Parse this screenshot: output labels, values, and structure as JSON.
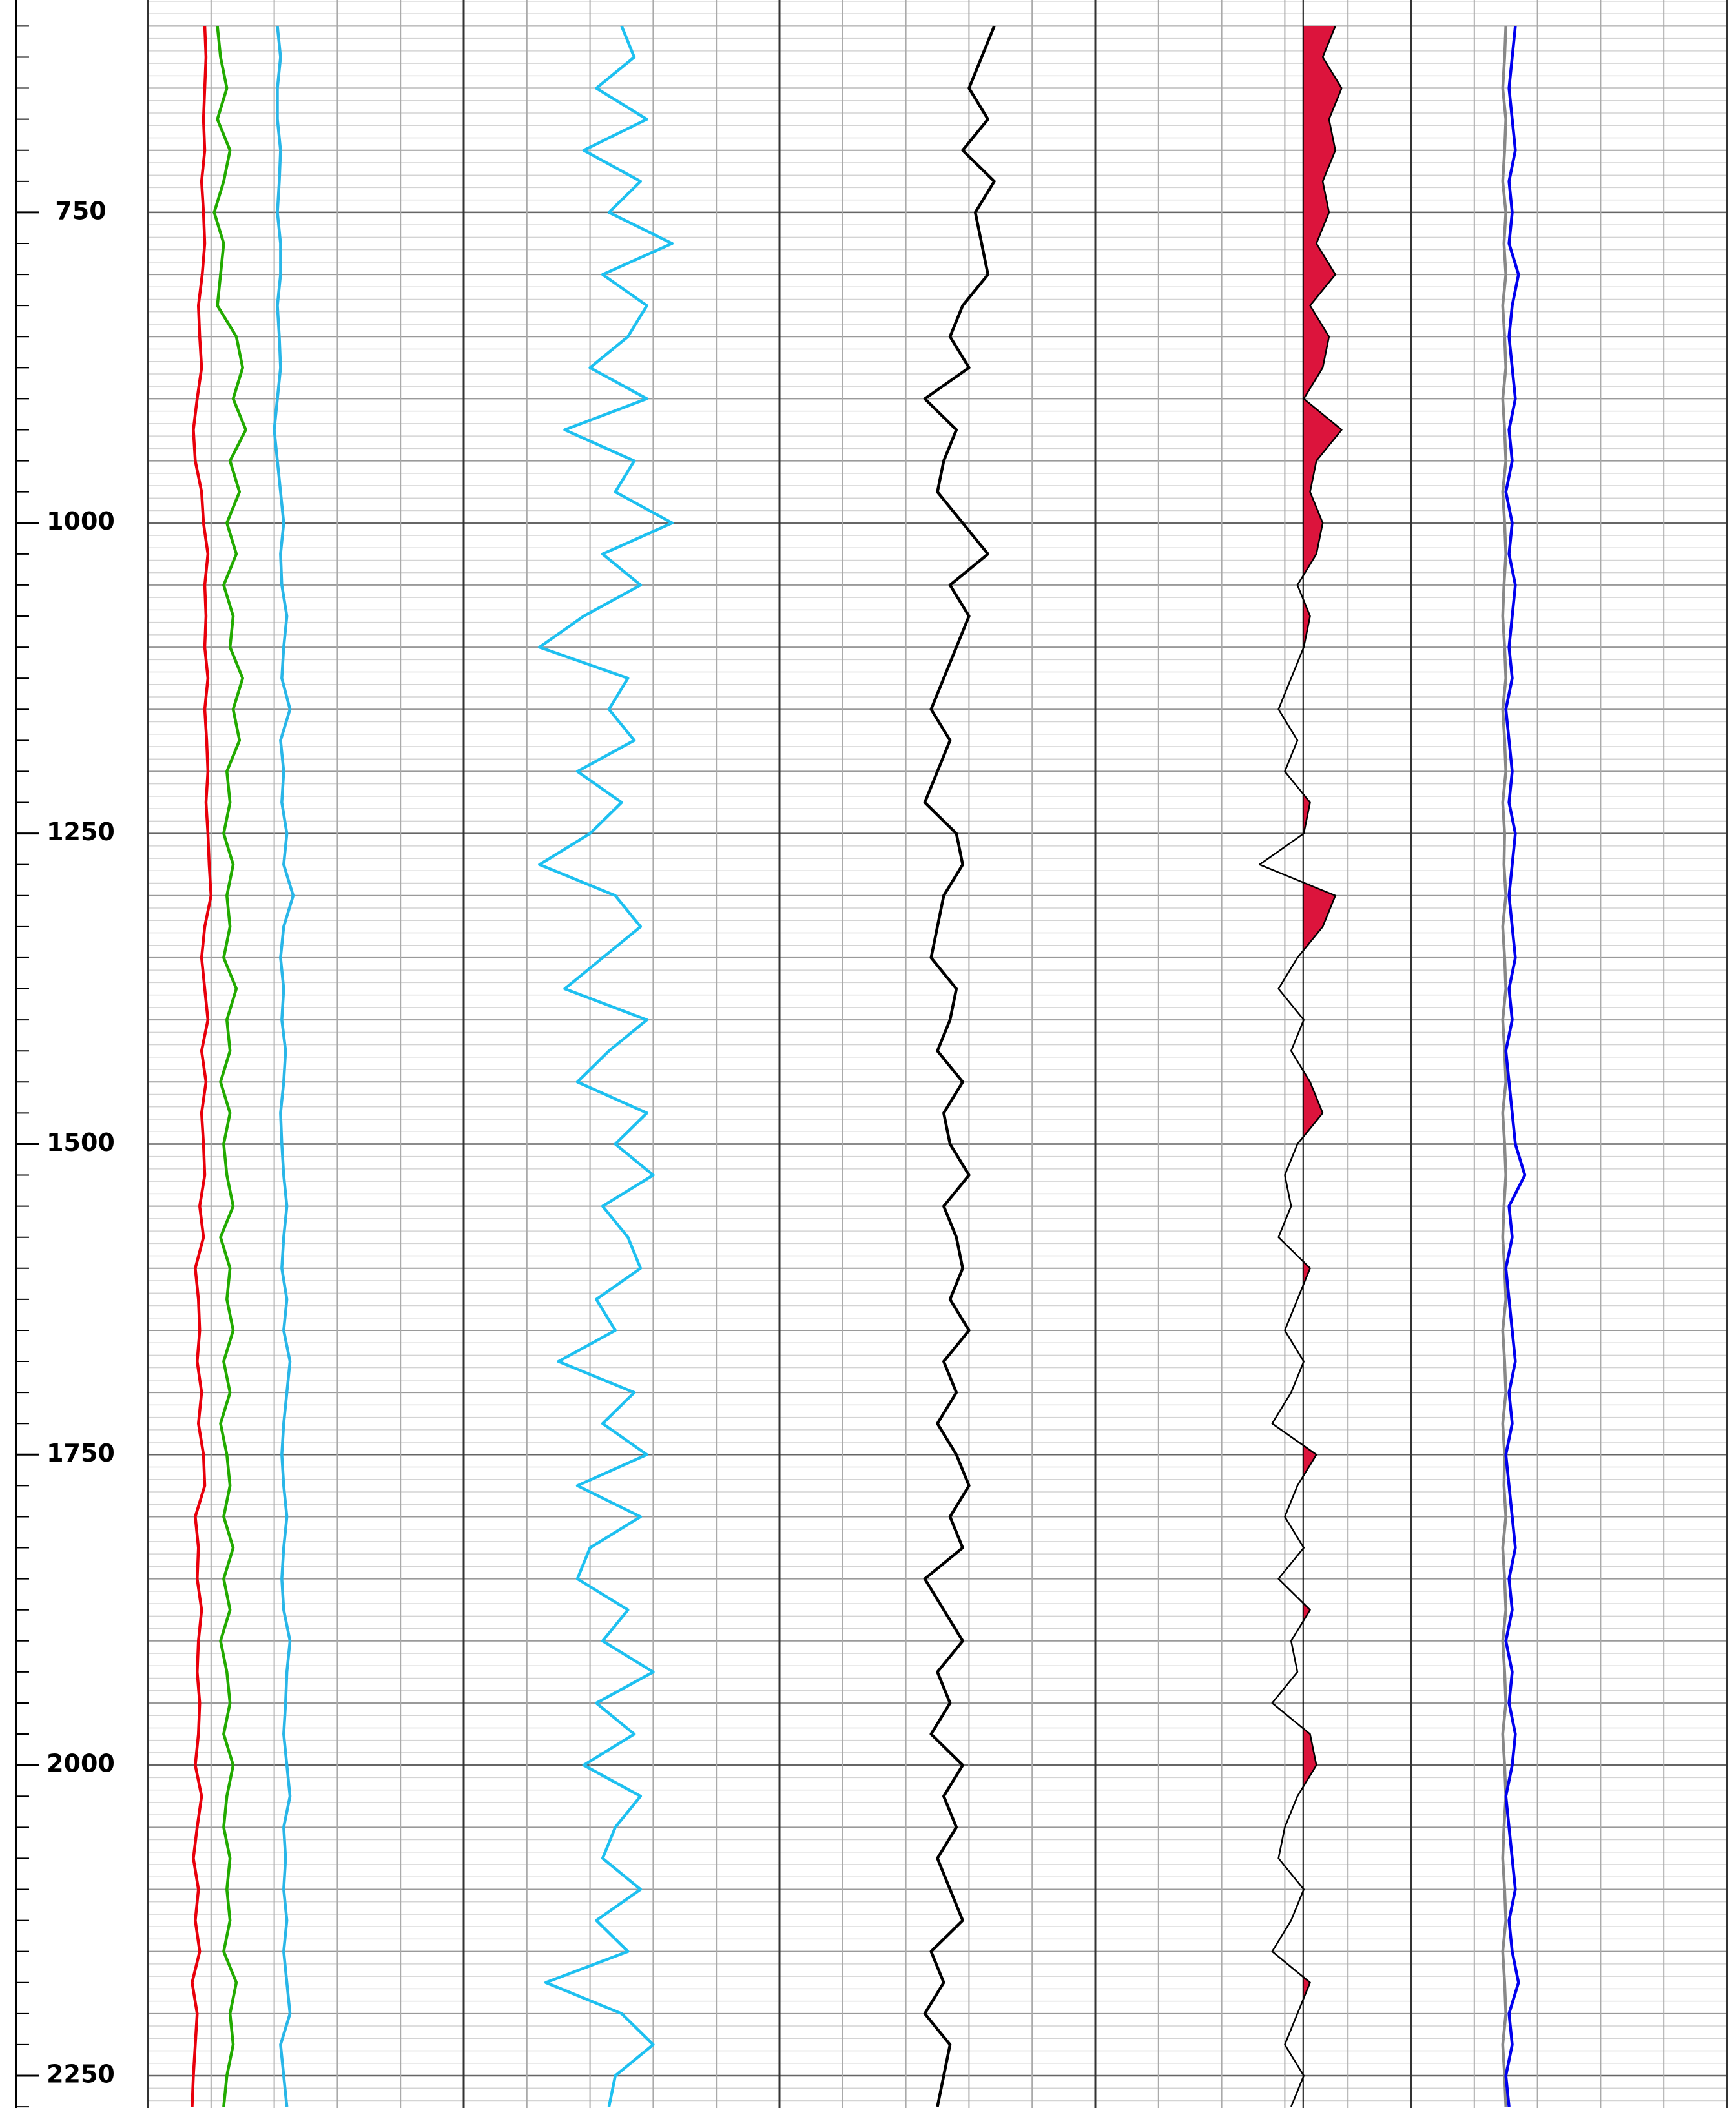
{
  "chart_data": {
    "type": "well-log",
    "ylim": [
      579,
      2276
    ],
    "yticks": [
      750,
      1000,
      1250,
      1500,
      1750,
      2000,
      2250
    ],
    "ygrid_minor": 10,
    "ygrid_mid": 50,
    "depth": [
      600,
      625,
      650,
      675,
      700,
      725,
      750,
      775,
      800,
      825,
      850,
      875,
      900,
      925,
      950,
      975,
      1000,
      1025,
      1050,
      1075,
      1100,
      1125,
      1150,
      1175,
      1200,
      1225,
      1250,
      1275,
      1300,
      1325,
      1350,
      1375,
      1400,
      1425,
      1450,
      1475,
      1500,
      1525,
      1550,
      1575,
      1600,
      1625,
      1650,
      1675,
      1700,
      1725,
      1750,
      1775,
      1800,
      1825,
      1850,
      1875,
      1900,
      1925,
      1950,
      1975,
      2000,
      2025,
      2050,
      2075,
      2100,
      2125,
      2150,
      2175,
      2200,
      2225,
      2250,
      2275
    ],
    "tracks": [
      {
        "xlim": [
          0,
          5
        ],
        "xticks": [
          0,
          1,
          2,
          3,
          4,
          5
        ],
        "series": [
          {
            "color": "#e8000b",
            "values": [
              0.9,
              0.92,
              0.9,
              0.88,
              0.9,
              0.85,
              0.88,
              0.9,
              0.86,
              0.8,
              0.82,
              0.85,
              0.78,
              0.72,
              0.75,
              0.85,
              0.88,
              0.95,
              0.9,
              0.92,
              0.9,
              0.95,
              0.9,
              0.93,
              0.95,
              0.92,
              0.95,
              0.97,
              1.0,
              0.9,
              0.85,
              0.9,
              0.95,
              0.85,
              0.92,
              0.85,
              0.88,
              0.9,
              0.82,
              0.88,
              0.75,
              0.8,
              0.82,
              0.78,
              0.85,
              0.8,
              0.88,
              0.9,
              0.75,
              0.8,
              0.78,
              0.85,
              0.8,
              0.78,
              0.82,
              0.8,
              0.75,
              0.85,
              0.78,
              0.72,
              0.8,
              0.75,
              0.82,
              0.7,
              0.78,
              0.75,
              0.72,
              0.7
            ]
          },
          {
            "color": "#22aa00",
            "values": [
              1.1,
              1.15,
              1.25,
              1.1,
              1.3,
              1.2,
              1.05,
              1.2,
              1.15,
              1.1,
              1.4,
              1.5,
              1.35,
              1.55,
              1.3,
              1.45,
              1.25,
              1.4,
              1.2,
              1.35,
              1.3,
              1.5,
              1.35,
              1.45,
              1.25,
              1.3,
              1.2,
              1.35,
              1.25,
              1.3,
              1.2,
              1.4,
              1.25,
              1.3,
              1.15,
              1.3,
              1.2,
              1.25,
              1.35,
              1.15,
              1.3,
              1.25,
              1.35,
              1.2,
              1.3,
              1.15,
              1.25,
              1.3,
              1.2,
              1.35,
              1.2,
              1.3,
              1.15,
              1.25,
              1.3,
              1.2,
              1.35,
              1.25,
              1.2,
              1.3,
              1.25,
              1.3,
              1.2,
              1.4,
              1.3,
              1.35,
              1.25,
              1.2
            ]
          },
          {
            "color": "#29b6e8",
            "values": [
              2.05,
              2.1,
              2.05,
              2.05,
              2.1,
              2.08,
              2.05,
              2.1,
              2.1,
              2.05,
              2.08,
              2.1,
              2.05,
              2.0,
              2.05,
              2.1,
              2.15,
              2.1,
              2.12,
              2.2,
              2.15,
              2.12,
              2.25,
              2.1,
              2.15,
              2.12,
              2.2,
              2.15,
              2.3,
              2.15,
              2.1,
              2.15,
              2.12,
              2.18,
              2.15,
              2.1,
              2.12,
              2.15,
              2.2,
              2.15,
              2.12,
              2.2,
              2.15,
              2.25,
              2.2,
              2.15,
              2.12,
              2.15,
              2.2,
              2.15,
              2.12,
              2.15,
              2.25,
              2.2,
              2.18,
              2.15,
              2.2,
              2.25,
              2.15,
              2.18,
              2.15,
              2.2,
              2.15,
              2.2,
              2.25,
              2.1,
              2.15,
              2.2
            ]
          }
        ]
      },
      {
        "xlim": [
          0,
          5
        ],
        "xticks": [
          0,
          1,
          2,
          3,
          4,
          5
        ],
        "series": [
          {
            "color": "#1ec0f0",
            "values": [
              2.5,
              2.7,
              2.1,
              2.9,
              1.9,
              2.8,
              2.3,
              3.3,
              2.2,
              2.9,
              2.6,
              2.0,
              2.9,
              1.6,
              2.7,
              2.4,
              3.3,
              2.2,
              2.8,
              1.9,
              1.2,
              2.6,
              2.3,
              2.7,
              1.8,
              2.5,
              2.0,
              1.2,
              2.4,
              2.8,
              2.2,
              1.6,
              2.9,
              2.3,
              1.8,
              2.9,
              2.4,
              3.0,
              2.2,
              2.6,
              2.8,
              2.1,
              2.4,
              1.5,
              2.7,
              2.2,
              2.9,
              1.8,
              2.8,
              2.0,
              1.8,
              2.6,
              2.2,
              3.0,
              2.1,
              2.7,
              1.9,
              2.8,
              2.4,
              2.2,
              2.8,
              2.1,
              2.6,
              1.3,
              2.5,
              3.0,
              2.4,
              2.3
            ]
          }
        ]
      },
      {
        "xlim": [
          0,
          5
        ],
        "xticks": [
          0,
          1,
          2,
          3,
          4,
          5
        ],
        "series": [
          {
            "color": "#000000",
            "values": [
              3.4,
              3.2,
              3.0,
              3.3,
              2.9,
              3.4,
              3.1,
              3.2,
              3.3,
              2.9,
              2.7,
              3.0,
              2.3,
              2.8,
              2.6,
              2.5,
              2.9,
              3.3,
              2.7,
              3.0,
              2.8,
              2.6,
              2.4,
              2.7,
              2.5,
              2.3,
              2.8,
              2.9,
              2.6,
              2.5,
              2.4,
              2.8,
              2.7,
              2.5,
              2.9,
              2.6,
              2.7,
              3.0,
              2.6,
              2.8,
              2.9,
              2.7,
              3.0,
              2.6,
              2.8,
              2.5,
              2.8,
              3.0,
              2.7,
              2.9,
              2.3,
              2.6,
              2.9,
              2.5,
              2.7,
              2.4,
              2.9,
              2.6,
              2.8,
              2.5,
              2.7,
              2.9,
              2.4,
              2.6,
              2.3,
              2.7,
              2.6,
              2.5
            ]
          }
        ]
      },
      {
        "xlim": [
          0,
          5
        ],
        "xticks": [
          0,
          1,
          2,
          3,
          4,
          5
        ],
        "series": [
          {
            "color": "#000000",
            "fill_color": "#dc143c",
            "fill_base": 3.29,
            "values": [
              3.8,
              3.6,
              3.9,
              3.7,
              3.8,
              3.6,
              3.7,
              3.5,
              3.8,
              3.4,
              3.7,
              3.6,
              3.3,
              3.9,
              3.5,
              3.4,
              3.6,
              3.5,
              3.2,
              3.4,
              3.3,
              3.1,
              2.9,
              3.2,
              3.0,
              3.4,
              3.3,
              2.6,
              3.8,
              3.6,
              3.2,
              2.9,
              3.3,
              3.1,
              3.4,
              3.6,
              3.2,
              3.0,
              3.1,
              2.9,
              3.4,
              3.2,
              3.0,
              3.3,
              3.1,
              2.8,
              3.5,
              3.2,
              3.0,
              3.3,
              2.9,
              3.4,
              3.1,
              3.2,
              2.8,
              3.4,
              3.5,
              3.2,
              3.0,
              2.9,
              3.3,
              3.1,
              2.8,
              3.4,
              3.2,
              3.0,
              3.3,
              3.1
            ]
          }
        ]
      },
      {
        "xlim": [
          0,
          5
        ],
        "xticks": [
          0,
          1,
          2,
          3,
          4,
          5
        ],
        "series": [
          {
            "color": "#888888",
            "values": [
              1.5,
              1.48,
              1.45,
              1.5,
              1.48,
              1.45,
              1.5,
              1.47,
              1.5,
              1.45,
              1.48,
              1.5,
              1.45,
              1.48,
              1.5,
              1.45,
              1.48,
              1.5,
              1.47,
              1.45,
              1.48,
              1.5,
              1.45,
              1.48,
              1.5,
              1.45,
              1.48,
              1.47,
              1.5,
              1.45,
              1.48,
              1.5,
              1.45,
              1.48,
              1.5,
              1.45,
              1.48,
              1.5,
              1.47,
              1.45,
              1.48,
              1.5,
              1.45,
              1.48,
              1.5,
              1.45,
              1.48,
              1.47,
              1.5,
              1.45,
              1.48,
              1.5,
              1.45,
              1.48,
              1.5,
              1.45,
              1.48,
              1.5,
              1.47,
              1.45,
              1.48,
              1.5,
              1.45,
              1.48,
              1.5,
              1.45,
              1.48,
              1.5
            ]
          },
          {
            "color": "#0000ee",
            "values": [
              1.65,
              1.6,
              1.55,
              1.6,
              1.65,
              1.55,
              1.6,
              1.55,
              1.7,
              1.6,
              1.55,
              1.6,
              1.65,
              1.55,
              1.6,
              1.5,
              1.6,
              1.55,
              1.65,
              1.6,
              1.55,
              1.6,
              1.5,
              1.55,
              1.6,
              1.55,
              1.65,
              1.6,
              1.55,
              1.6,
              1.65,
              1.55,
              1.6,
              1.5,
              1.55,
              1.6,
              1.65,
              1.8,
              1.55,
              1.6,
              1.5,
              1.55,
              1.6,
              1.65,
              1.55,
              1.6,
              1.5,
              1.55,
              1.6,
              1.65,
              1.55,
              1.6,
              1.5,
              1.6,
              1.55,
              1.65,
              1.6,
              1.5,
              1.55,
              1.6,
              1.65,
              1.55,
              1.6,
              1.7,
              1.55,
              1.6,
              1.5,
              1.55
            ]
          }
        ]
      }
    ]
  }
}
